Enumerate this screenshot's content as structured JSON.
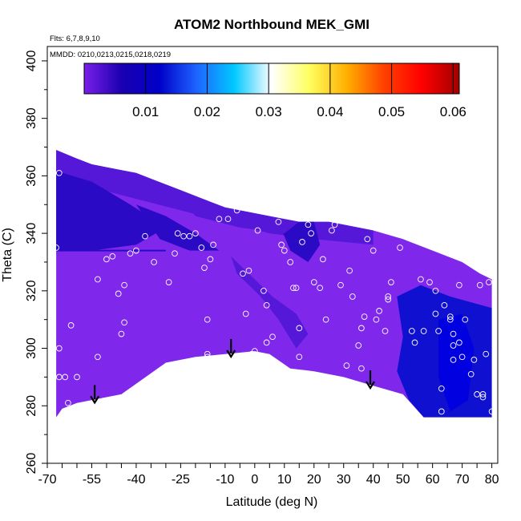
{
  "chart_data": {
    "type": "heatmap",
    "title": "ATOM2 Northbound MEK_GMI",
    "flights_note": "Flts: 6,7,8,9,10",
    "dates_note": "MMDD: 0210,0213,0215,0218,0219",
    "xlabel": "Latitude (deg N)",
    "ylabel": "Theta (C)",
    "xlim": [
      -70,
      82
    ],
    "ylim": [
      260,
      405
    ],
    "x_ticks": [
      -70,
      -55,
      -40,
      -25,
      -10,
      0,
      10,
      20,
      30,
      40,
      50,
      60,
      70,
      80
    ],
    "x_minor_step": 5,
    "y_ticks": [
      260,
      280,
      300,
      320,
      340,
      360,
      380,
      400
    ],
    "colorbar": {
      "range": [
        0,
        0.061
      ],
      "ticks": [
        0.01,
        0.02,
        0.03,
        0.04,
        0.05,
        0.06
      ],
      "tick_labels": [
        "0.01",
        "0.02",
        "0.03",
        "0.04",
        "0.05",
        "0.06"
      ],
      "colors": [
        "#7a1fe8",
        "#1a00b0",
        "#0000c8",
        "#1e64ff",
        "#00c8ff",
        "#ffffff",
        "#ffff60",
        "#ffb000",
        "#ff4000",
        "#ff0000",
        "#a00000"
      ]
    },
    "field_colors": {
      "background": "#7f28ec",
      "dark_band": "#2a0ac4",
      "medium_band": "#5518d8",
      "high_region": "#1010d0",
      "core": "#0000e0"
    },
    "upper_boundary": [
      [
        -67,
        369
      ],
      [
        -60,
        366
      ],
      [
        -55,
        364
      ],
      [
        -50,
        363
      ],
      [
        -45,
        362
      ],
      [
        -40,
        361
      ],
      [
        -35,
        359
      ],
      [
        -30,
        357
      ],
      [
        -25,
        355
      ],
      [
        -20,
        353
      ],
      [
        -15,
        351
      ],
      [
        -10,
        349
      ],
      [
        -5,
        348
      ],
      [
        0,
        347
      ],
      [
        5,
        346
      ],
      [
        10,
        345
      ],
      [
        15,
        344
      ],
      [
        20,
        344
      ],
      [
        25,
        344
      ],
      [
        30,
        343
      ],
      [
        40,
        341
      ],
      [
        50,
        338
      ],
      [
        60,
        334
      ],
      [
        70,
        330
      ],
      [
        76,
        326
      ],
      [
        80,
        324
      ]
    ],
    "lower_boundary": [
      [
        80,
        276
      ],
      [
        57,
        276
      ],
      [
        50,
        284
      ],
      [
        40,
        287
      ],
      [
        30,
        290
      ],
      [
        20,
        292
      ],
      [
        12,
        293
      ],
      [
        5,
        298
      ],
      [
        0,
        299
      ],
      [
        -10,
        298
      ],
      [
        -20,
        297
      ],
      [
        -30,
        295
      ],
      [
        -45,
        284
      ],
      [
        -55,
        282
      ],
      [
        -60,
        281
      ],
      [
        -65,
        279
      ],
      [
        -67,
        276
      ]
    ],
    "troposphere_edge_theta": 334,
    "arrows_lat": [
      -54,
      -8,
      39
    ],
    "points": [
      [
        -67,
        335
      ],
      [
        -66,
        361
      ],
      [
        -66,
        300
      ],
      [
        -66,
        290
      ],
      [
        -64,
        290
      ],
      [
        -63,
        281
      ],
      [
        -62,
        308
      ],
      [
        -60,
        290
      ],
      [
        -53,
        297
      ],
      [
        -53,
        324
      ],
      [
        -50,
        331
      ],
      [
        -48,
        332
      ],
      [
        -46,
        319
      ],
      [
        -45,
        305
      ],
      [
        -44,
        309
      ],
      [
        -44,
        322
      ],
      [
        -42,
        333
      ],
      [
        -40,
        334
      ],
      [
        -37,
        339
      ],
      [
        -34,
        330
      ],
      [
        -29,
        323
      ],
      [
        -27,
        333
      ],
      [
        -26,
        340
      ],
      [
        -24,
        339
      ],
      [
        -22,
        339
      ],
      [
        -20,
        340
      ],
      [
        -18,
        335
      ],
      [
        -17,
        328
      ],
      [
        -16,
        310
      ],
      [
        -16,
        297
      ],
      [
        -16,
        298
      ],
      [
        -15,
        331
      ],
      [
        -14,
        336
      ],
      [
        -12,
        345
      ],
      [
        -9,
        345
      ],
      [
        -6,
        348
      ],
      [
        -4,
        326
      ],
      [
        -3,
        312
      ],
      [
        -2,
        327
      ],
      [
        0,
        299
      ],
      [
        -1,
        298
      ],
      [
        1,
        341
      ],
      [
        3,
        320
      ],
      [
        4,
        315
      ],
      [
        4,
        302
      ],
      [
        6,
        304
      ],
      [
        8,
        344
      ],
      [
        9,
        336
      ],
      [
        10,
        334
      ],
      [
        12,
        330
      ],
      [
        13,
        321
      ],
      [
        14,
        321
      ],
      [
        15,
        307
      ],
      [
        15,
        297
      ],
      [
        16,
        337
      ],
      [
        18,
        343
      ],
      [
        19,
        340
      ],
      [
        20,
        323
      ],
      [
        22,
        321
      ],
      [
        23,
        331
      ],
      [
        24,
        310
      ],
      [
        26,
        341
      ],
      [
        27,
        343
      ],
      [
        29,
        322
      ],
      [
        31,
        294
      ],
      [
        32,
        327
      ],
      [
        33,
        318
      ],
      [
        35,
        301
      ],
      [
        36,
        307
      ],
      [
        36,
        293
      ],
      [
        37,
        311
      ],
      [
        38,
        338
      ],
      [
        40,
        334
      ],
      [
        41,
        310
      ],
      [
        42,
        313
      ],
      [
        44,
        306
      ],
      [
        45,
        318
      ],
      [
        45,
        317
      ],
      [
        46,
        323
      ],
      [
        49,
        335
      ],
      [
        53,
        306
      ],
      [
        54,
        302
      ],
      [
        56,
        324
      ],
      [
        57,
        306
      ],
      [
        59,
        323
      ],
      [
        61,
        320
      ],
      [
        61,
        312
      ],
      [
        62,
        306
      ],
      [
        63,
        286
      ],
      [
        64,
        315
      ],
      [
        66,
        310
      ],
      [
        66,
        311
      ],
      [
        67,
        305
      ],
      [
        67,
        301
      ],
      [
        67,
        296
      ],
      [
        69,
        322
      ],
      [
        69,
        302
      ],
      [
        70,
        297
      ],
      [
        71,
        310
      ],
      [
        73,
        291
      ],
      [
        74,
        296
      ],
      [
        75,
        284
      ],
      [
        76,
        322
      ],
      [
        77,
        283
      ],
      [
        77,
        284
      ],
      [
        78,
        298
      ],
      [
        79,
        323
      ],
      [
        80,
        278
      ],
      [
        63,
        278
      ]
    ]
  }
}
